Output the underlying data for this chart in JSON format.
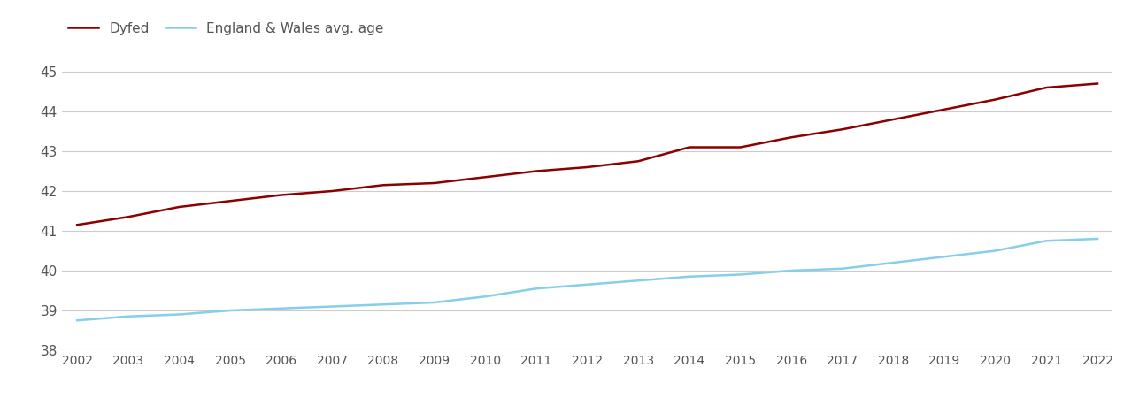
{
  "years": [
    2002,
    2003,
    2004,
    2005,
    2006,
    2007,
    2008,
    2009,
    2010,
    2011,
    2012,
    2013,
    2014,
    2015,
    2016,
    2017,
    2018,
    2019,
    2020,
    2021,
    2022
  ],
  "dyfed": [
    41.15,
    41.35,
    41.6,
    41.75,
    41.9,
    42.0,
    42.15,
    42.2,
    42.35,
    42.5,
    42.6,
    42.75,
    43.1,
    43.1,
    43.35,
    43.55,
    43.8,
    44.05,
    44.3,
    44.6,
    44.7
  ],
  "england_wales": [
    38.75,
    38.85,
    38.9,
    39.0,
    39.05,
    39.1,
    39.15,
    39.2,
    39.35,
    39.55,
    39.65,
    39.75,
    39.85,
    39.9,
    40.0,
    40.05,
    40.2,
    40.35,
    40.5,
    40.75,
    40.8
  ],
  "dyfed_color": "#8B0000",
  "england_wales_color": "#87CEEB",
  "background_color": "#ffffff",
  "legend_dyfed": "Dyfed",
  "legend_ew": "England & Wales avg. age",
  "ylim_min": 38,
  "ylim_max": 45.6,
  "yticks": [
    38,
    39,
    40,
    41,
    42,
    43,
    44,
    45
  ],
  "grid_color": "#cccccc",
  "tick_label_color": "#555555",
  "line_width": 1.8
}
